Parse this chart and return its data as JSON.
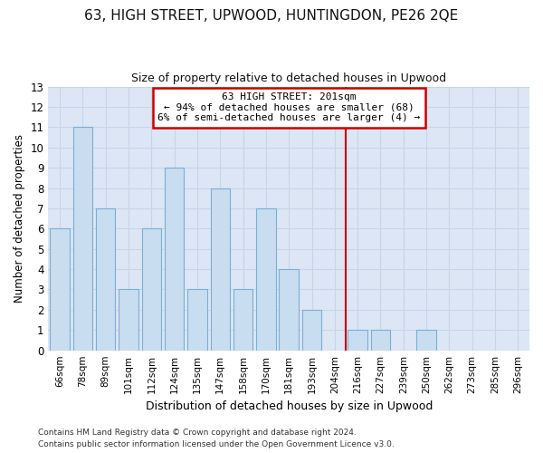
{
  "title": "63, HIGH STREET, UPWOOD, HUNTINGDON, PE26 2QE",
  "subtitle": "Size of property relative to detached houses in Upwood",
  "xlabel": "Distribution of detached houses by size in Upwood",
  "ylabel": "Number of detached properties",
  "categories": [
    "66sqm",
    "78sqm",
    "89sqm",
    "101sqm",
    "112sqm",
    "124sqm",
    "135sqm",
    "147sqm",
    "158sqm",
    "170sqm",
    "181sqm",
    "193sqm",
    "204sqm",
    "216sqm",
    "227sqm",
    "239sqm",
    "250sqm",
    "262sqm",
    "273sqm",
    "285sqm",
    "296sqm"
  ],
  "values": [
    6,
    11,
    7,
    3,
    6,
    9,
    3,
    8,
    3,
    7,
    4,
    2,
    0,
    1,
    1,
    0,
    1,
    0,
    0,
    0,
    0
  ],
  "bar_color": "#c9ddf0",
  "bar_edge_color": "#7aafd4",
  "grid_color": "#c8d4e8",
  "background_color": "#dce6f5",
  "annotation_box_color": "#cc0000",
  "vline_index": 12.5,
  "ylim": [
    0,
    13
  ],
  "yticks": [
    0,
    1,
    2,
    3,
    4,
    5,
    6,
    7,
    8,
    9,
    10,
    11,
    12,
    13
  ],
  "footer_line1": "Contains HM Land Registry data © Crown copyright and database right 2024.",
  "footer_line2": "Contains public sector information licensed under the Open Government Licence v3.0."
}
